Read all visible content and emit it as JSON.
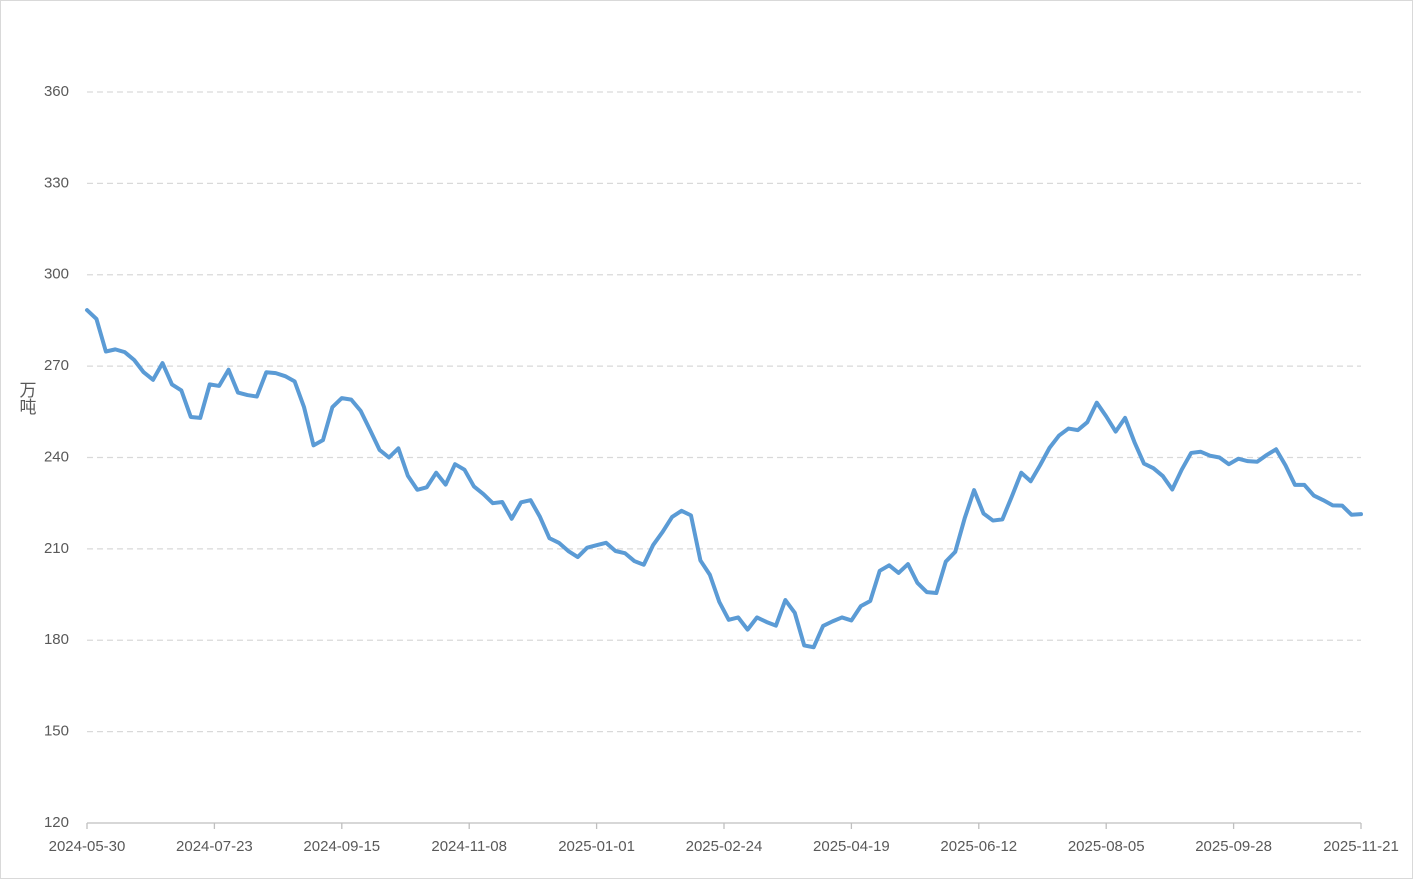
{
  "chart_data": {
    "type": "line",
    "y_label": "万吨",
    "x": [
      "2024-05-30",
      "2024-06-03",
      "2024-06-07",
      "2024-06-11",
      "2024-06-15",
      "2024-06-19",
      "2024-06-23",
      "2024-06-27",
      "2024-07-01",
      "2024-07-05",
      "2024-07-09",
      "2024-07-13",
      "2024-07-17",
      "2024-07-21",
      "2024-07-25",
      "2024-07-29",
      "2024-08-02",
      "2024-08-06",
      "2024-08-10",
      "2024-08-14",
      "2024-08-18",
      "2024-08-22",
      "2024-08-26",
      "2024-08-30",
      "2024-09-03",
      "2024-09-07",
      "2024-09-11",
      "2024-09-15",
      "2024-09-19",
      "2024-09-23",
      "2024-09-27",
      "2024-10-01",
      "2024-10-05",
      "2024-10-09",
      "2024-10-13",
      "2024-10-17",
      "2024-10-21",
      "2024-10-25",
      "2024-10-29",
      "2024-11-02",
      "2024-11-06",
      "2024-11-10",
      "2024-11-14",
      "2024-11-18",
      "2024-11-22",
      "2024-11-26",
      "2024-11-30",
      "2024-12-04",
      "2024-12-08",
      "2024-12-12",
      "2024-12-16",
      "2024-12-20",
      "2024-12-24",
      "2024-12-28",
      "2025-01-01",
      "2025-01-05",
      "2025-01-09",
      "2025-01-13",
      "2025-01-17",
      "2025-01-21",
      "2025-01-25",
      "2025-01-29",
      "2025-02-02",
      "2025-02-06",
      "2025-02-10",
      "2025-02-14",
      "2025-02-18",
      "2025-02-22",
      "2025-02-26",
      "2025-03-02",
      "2025-03-06",
      "2025-03-10",
      "2025-03-14",
      "2025-03-18",
      "2025-03-22",
      "2025-03-26",
      "2025-03-30",
      "2025-04-03",
      "2025-04-07",
      "2025-04-11",
      "2025-04-15",
      "2025-04-19",
      "2025-04-23",
      "2025-04-27",
      "2025-05-01",
      "2025-05-05",
      "2025-05-09",
      "2025-05-13",
      "2025-05-17",
      "2025-05-21",
      "2025-05-25",
      "2025-05-29",
      "2025-06-02",
      "2025-06-06",
      "2025-06-10",
      "2025-06-14",
      "2025-06-18",
      "2025-06-22",
      "2025-06-26",
      "2025-06-30",
      "2025-07-04",
      "2025-07-08",
      "2025-07-12",
      "2025-07-16",
      "2025-07-20",
      "2025-07-24",
      "2025-07-28",
      "2025-08-01",
      "2025-08-05",
      "2025-08-09",
      "2025-08-13",
      "2025-08-17",
      "2025-08-21",
      "2025-08-25",
      "2025-08-29",
      "2025-09-02",
      "2025-09-06",
      "2025-09-10",
      "2025-09-14",
      "2025-09-18",
      "2025-09-22",
      "2025-09-26",
      "2025-09-30",
      "2025-10-04",
      "2025-10-08",
      "2025-10-12",
      "2025-10-16",
      "2025-10-20",
      "2025-10-24",
      "2025-10-28",
      "2025-11-01",
      "2025-11-05",
      "2025-11-09",
      "2025-11-13",
      "2025-11-17",
      "2025-11-21"
    ],
    "series": [
      {
        "color": "#5b9bd5",
        "values": [
          288.4,
          285.5,
          274.8,
          275.5,
          274.6,
          272,
          268,
          265.5,
          271,
          264,
          262,
          253.3,
          253,
          264,
          263.5,
          268.8,
          261.3,
          260.5,
          260,
          268,
          267.7,
          266.7,
          265,
          256.5,
          244,
          245.7,
          256.5,
          259.5,
          259,
          255.3,
          249,
          242.5,
          240,
          243,
          234,
          229.4,
          230.2,
          235,
          231.1,
          237.8,
          236,
          230.5,
          228,
          225,
          225.4,
          219.9,
          225.3,
          226,
          220.5,
          213.5,
          212,
          209.3,
          207.3,
          210.4,
          211.2,
          212,
          209.3,
          208.6,
          206,
          204.8,
          211.3,
          215.6,
          220.5,
          222.5,
          221,
          206.2,
          201.5,
          192.6,
          186.7,
          187.5,
          183.5,
          187.5,
          186,
          184.8,
          193.2,
          189,
          178.3,
          177.7,
          184.7,
          186.2,
          187.5,
          186.5,
          191.2,
          192.9,
          202.8,
          204.6,
          202.1,
          205,
          198.8,
          195.8,
          195.5,
          205.8,
          209,
          220,
          229.3,
          221.6,
          219.3,
          219.7,
          227.2,
          235,
          232.2,
          237.5,
          243.2,
          247.2,
          249.5,
          249,
          251.6,
          258,
          253.5,
          248.5,
          253,
          245,
          238,
          236.5,
          233.9,
          229.5,
          236,
          241.5,
          241.9,
          240.6,
          240,
          237.8,
          239.6,
          238.8,
          238.6,
          240.8,
          242.7,
          237.4,
          231,
          231,
          227.5,
          226,
          224.3,
          224.2,
          221.2,
          221.4
        ]
      }
    ],
    "xlim": [
      "2024-05-30",
      "2025-11-21"
    ],
    "xticks": [
      "2024-05-30",
      "2024-07-23",
      "2024-09-15",
      "2024-11-08",
      "2025-01-01",
      "2025-02-24",
      "2025-04-19",
      "2025-06-12",
      "2025-08-05",
      "2025-09-28",
      "2025-11-21"
    ],
    "ylim": [
      120,
      360
    ],
    "yticks": [
      120,
      150,
      180,
      210,
      240,
      270,
      300,
      330,
      360
    ],
    "grid": true
  }
}
